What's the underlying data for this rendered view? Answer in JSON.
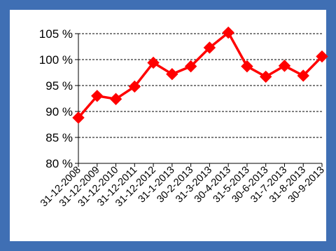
{
  "chart_data": {
    "type": "line",
    "title": "",
    "xlabel": "",
    "ylabel": "",
    "categories": [
      "31-12-2008",
      "31-12-2009",
      "31-12-2010",
      "31-12-2011",
      "31-12-2012",
      "31-1-2013",
      "30-2-2013",
      "31-3-2013",
      "30-4-2013",
      "31-5-2013",
      "30-6-2013",
      "31-7-2013",
      "31-8-2013",
      "30-9-2013"
    ],
    "series": [
      {
        "values": [
          88.8,
          93.0,
          92.4,
          94.8,
          99.4,
          97.2,
          98.7,
          102.3,
          105.2,
          98.7,
          96.7,
          98.8,
          96.9,
          100.6
        ],
        "color": "#ff0000",
        "marker": "diamond"
      }
    ],
    "yticks": [
      "80 %",
      "85 %",
      "90 %",
      "95 %",
      "100 %",
      "105 %"
    ],
    "ytick_values": [
      80,
      85,
      90,
      95,
      100,
      105
    ],
    "ylim": [
      80,
      105
    ],
    "grid": "horizontal dashed",
    "legend": "none"
  },
  "colors": {
    "background": "#3f6fb4",
    "panel": "#ffffff",
    "line": "#ff0000",
    "grid": "#000000"
  }
}
